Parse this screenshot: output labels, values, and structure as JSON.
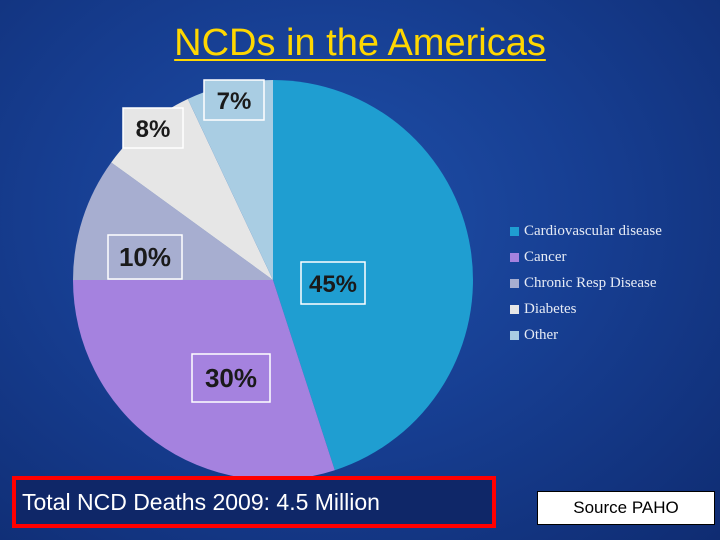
{
  "title": "NCDs in the Americas",
  "title_color": "#ffd700",
  "footer": {
    "text": "Total NCD Deaths  2009: 4.5 Million"
  },
  "source": {
    "text": "Source PAHO"
  },
  "chart_data": {
    "type": "pie",
    "title": "",
    "legend_position": "right",
    "slices": [
      {
        "label": "Cardiovascular disease",
        "value": 45,
        "data_label": "45%",
        "color": "#1f9ed1"
      },
      {
        "label": "Cancer",
        "value": 30,
        "data_label": "30%",
        "color": "#a582df"
      },
      {
        "label": "Chronic Resp Disease",
        "value": 10,
        "data_label": "10%",
        "color": "#a7aed0"
      },
      {
        "label": "Diabetes",
        "value": 8,
        "data_label": "8%",
        "color": "#e6e6e6"
      },
      {
        "label": "Other",
        "value": 7,
        "data_label": "7%",
        "color": "#a9cde3"
      }
    ]
  }
}
